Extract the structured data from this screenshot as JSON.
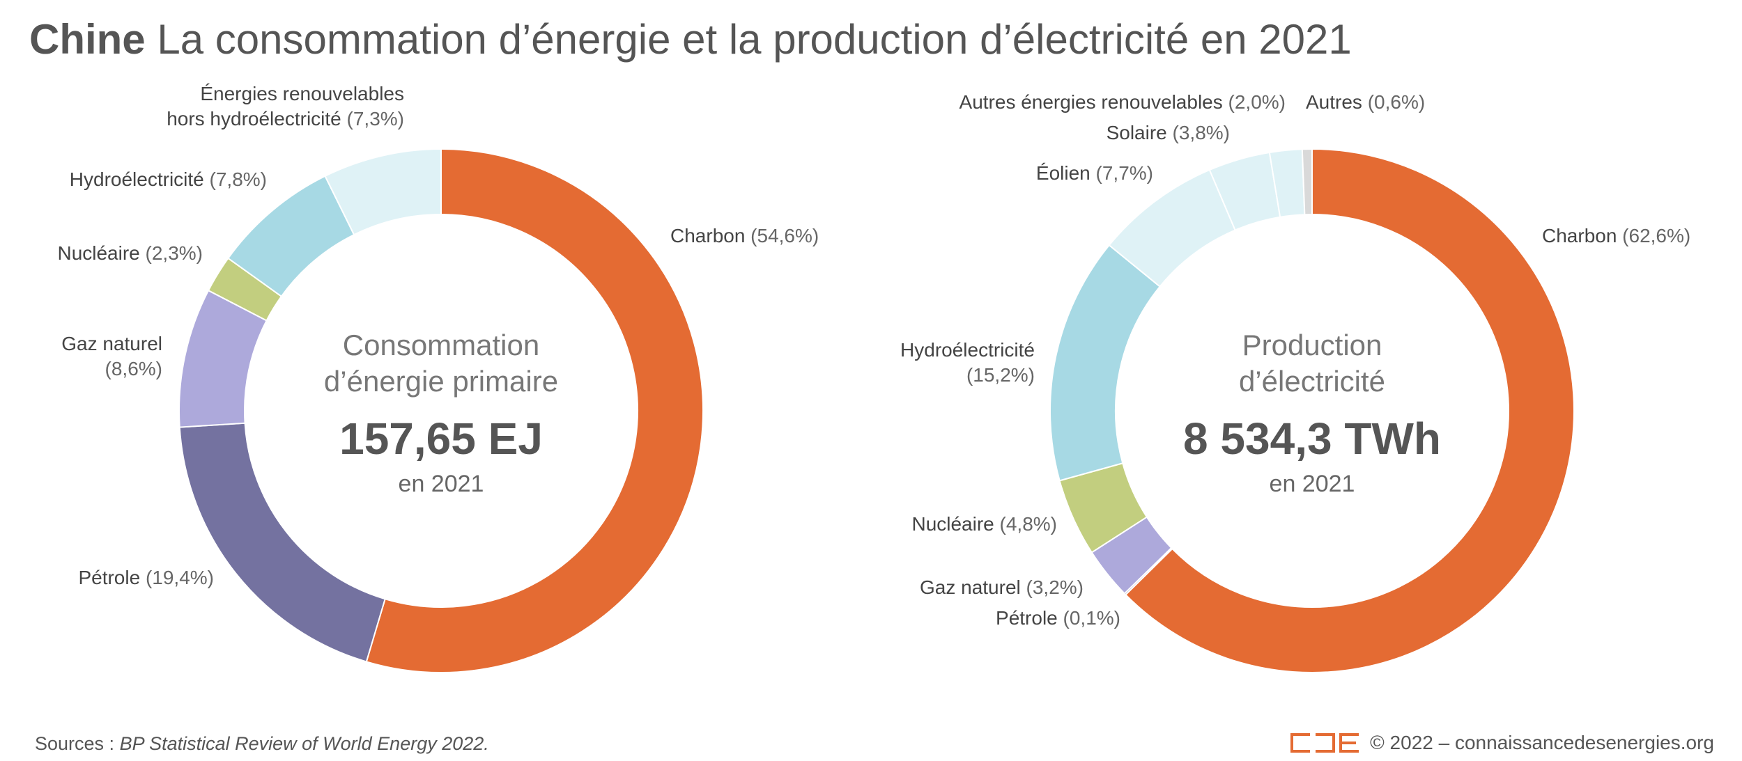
{
  "header": {
    "country": "Chine",
    "title": "La consommation d’énergie et la production d’électricité en 2021"
  },
  "colors": {
    "charbon": "#E46B33",
    "petrole": "#7472A0",
    "gaz_naturel": "#ADA9DB",
    "nucleaire": "#C2CE7F",
    "hydro": "#A7D9E4",
    "renouvelables": "#DFF2F6",
    "autres": "#D9D9D9",
    "text": "#555555",
    "logo": "#E46B33"
  },
  "chart_data": [
    {
      "type": "pie",
      "variant": "donut",
      "center": {
        "title_lines": [
          "Consommation",
          "d’énergie primaire"
        ],
        "value": "157,65 EJ",
        "sub": "en 2021"
      },
      "slices": [
        {
          "key": "charbon",
          "name": "Charbon",
          "pct_label": "(54,6%)",
          "value": 54.6
        },
        {
          "key": "petrole",
          "name": "Pétrole",
          "pct_label": "(19,4%)",
          "value": 19.4
        },
        {
          "key": "gaz_naturel",
          "name_lines": [
            "Gaz naturel"
          ],
          "pct_label": "(8,6%)",
          "value": 8.6
        },
        {
          "key": "nucleaire",
          "name": "Nucléaire",
          "pct_label": "(2,3%)",
          "value": 2.3
        },
        {
          "key": "hydro",
          "name": "Hydroélectricité",
          "pct_label": "(7,8%)",
          "value": 7.8
        },
        {
          "key": "renouvelables",
          "name_lines": [
            "Énergies renouvelables",
            "hors hydroélectricité"
          ],
          "pct_label": "(7,3%)",
          "value": 7.3
        }
      ]
    },
    {
      "type": "pie",
      "variant": "donut",
      "center": {
        "title_lines": [
          "Production",
          "d’électricité"
        ],
        "value": "8 534,3 TWh",
        "sub": "en 2021"
      },
      "slices": [
        {
          "key": "charbon",
          "name": "Charbon",
          "pct_label": "(62,6%)",
          "value": 62.6
        },
        {
          "key": "petrole",
          "name": "Pétrole",
          "pct_label": "(0,1%)",
          "value": 0.1
        },
        {
          "key": "gaz_naturel",
          "name": "Gaz naturel",
          "pct_label": "(3,2%)",
          "value": 3.2
        },
        {
          "key": "nucleaire",
          "name": "Nucléaire",
          "pct_label": "(4,8%)",
          "value": 4.8
        },
        {
          "key": "hydro",
          "name_lines": [
            "Hydroélectricité"
          ],
          "pct_label": "(15,2%)",
          "value": 15.2
        },
        {
          "key": "renouvelables",
          "name": "Éolien",
          "pct_label": "(7,7%)",
          "value": 7.7
        },
        {
          "key": "renouvelables",
          "name": "Solaire",
          "pct_label": "(3,8%)",
          "value": 3.8
        },
        {
          "key": "renouvelables",
          "name": "Autres énergies renouvelables",
          "pct_label": "(2,0%)",
          "value": 2.0
        },
        {
          "key": "autres",
          "name": "Autres",
          "pct_label": "(0,6%)",
          "value": 0.6
        }
      ]
    }
  ],
  "footer": {
    "sources_prefix": "Sources : ",
    "sources_title": "BP Statistical Review of World Energy 2022.",
    "copyright": "© 2022 – connaissancedesenergies.org"
  }
}
